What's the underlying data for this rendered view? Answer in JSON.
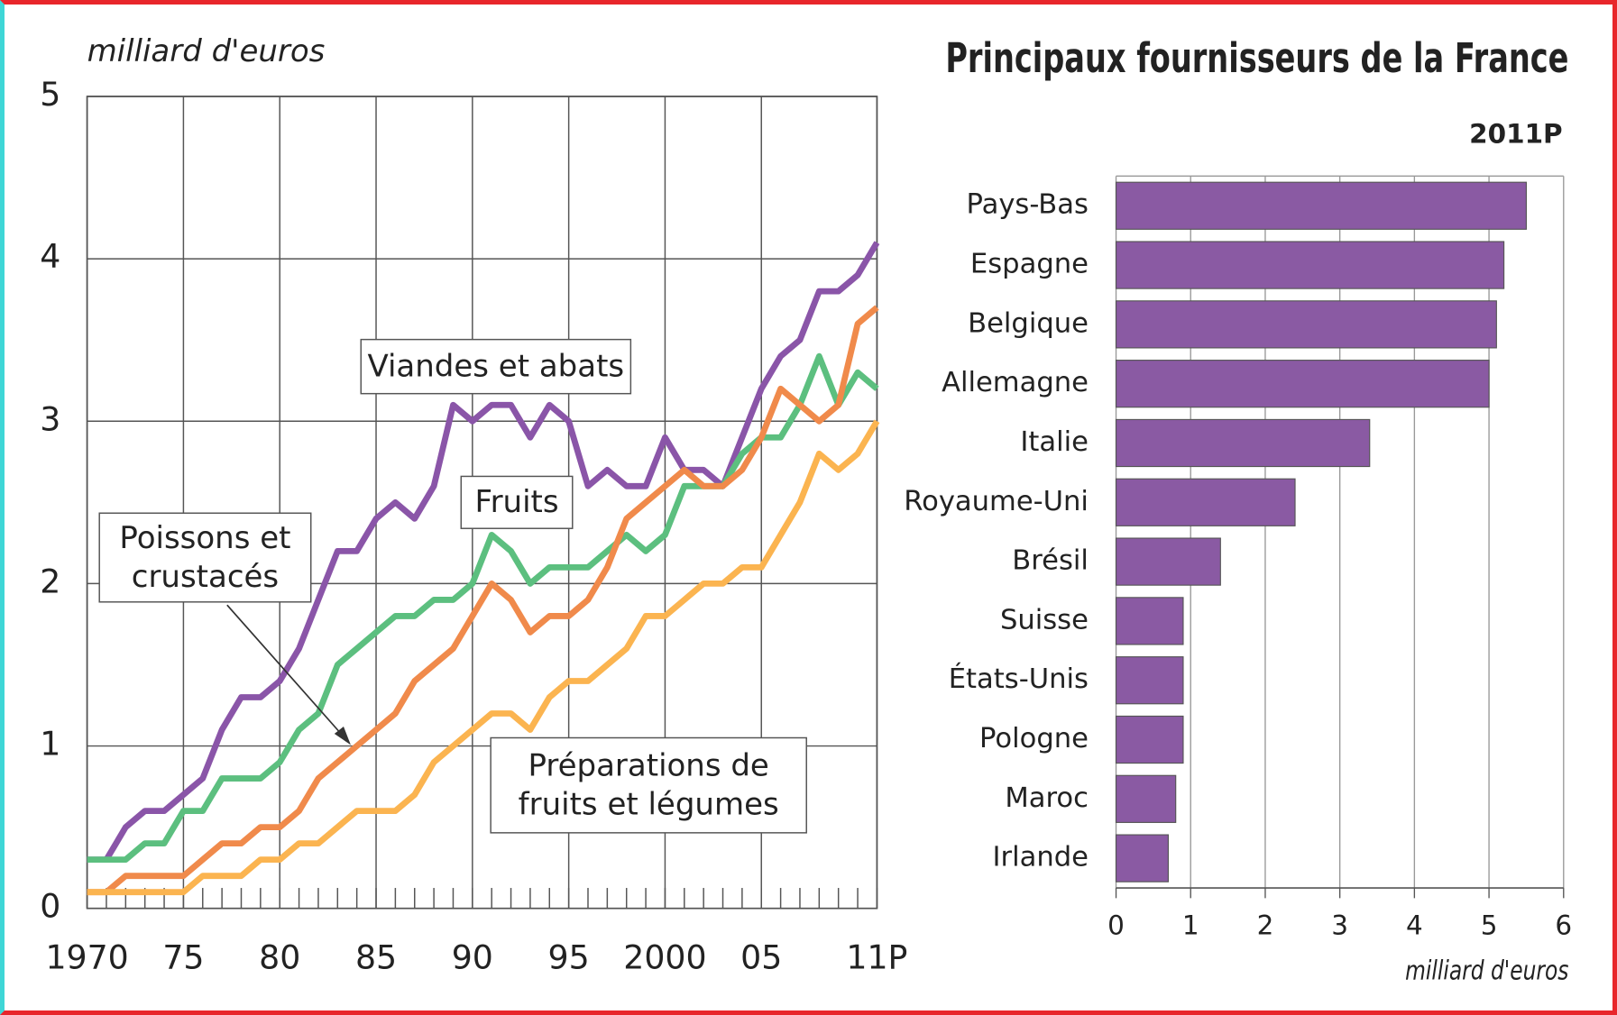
{
  "chart_data": [
    {
      "type": "line",
      "ylabel": "milliard d'euros",
      "x": [
        1970,
        1971,
        1972,
        1973,
        1974,
        1975,
        1976,
        1977,
        1978,
        1979,
        1980,
        1981,
        1982,
        1983,
        1984,
        1985,
        1986,
        1987,
        1988,
        1989,
        1990,
        1991,
        1992,
        1993,
        1994,
        1995,
        1996,
        1997,
        1998,
        1999,
        2000,
        2001,
        2002,
        2003,
        2004,
        2005,
        2006,
        2007,
        2008,
        2009,
        2010,
        2011
      ],
      "xlim": [
        1970,
        2011
      ],
      "xticks": [
        {
          "value": 1970,
          "label": "1970"
        },
        {
          "value": 1975,
          "label": "75"
        },
        {
          "value": 1980,
          "label": "80"
        },
        {
          "value": 1985,
          "label": "85"
        },
        {
          "value": 1990,
          "label": "90"
        },
        {
          "value": 1995,
          "label": "95"
        },
        {
          "value": 2000,
          "label": "2000"
        },
        {
          "value": 2005,
          "label": "05"
        },
        {
          "value": 2011,
          "label": "11P"
        }
      ],
      "ylim": [
        0,
        5
      ],
      "yticks": [
        0,
        1,
        2,
        3,
        4,
        5
      ],
      "grid": true,
      "series": [
        {
          "name": "Viandes et abats",
          "color": "#8a55a8",
          "values": [
            0.3,
            0.3,
            0.5,
            0.6,
            0.6,
            0.7,
            0.8,
            1.1,
            1.3,
            1.3,
            1.4,
            1.6,
            1.9,
            2.2,
            2.2,
            2.4,
            2.5,
            2.4,
            2.6,
            3.1,
            3.0,
            3.1,
            3.1,
            2.9,
            3.1,
            3.0,
            2.6,
            2.7,
            2.6,
            2.6,
            2.9,
            2.7,
            2.7,
            2.6,
            2.9,
            3.2,
            3.4,
            3.5,
            3.8,
            3.8,
            3.9,
            4.1
          ]
        },
        {
          "name": "Fruits",
          "color": "#5cbf7f",
          "values": [
            0.3,
            0.3,
            0.3,
            0.4,
            0.4,
            0.6,
            0.6,
            0.8,
            0.8,
            0.8,
            0.9,
            1.1,
            1.2,
            1.5,
            1.6,
            1.7,
            1.8,
            1.8,
            1.9,
            1.9,
            2.0,
            2.3,
            2.2,
            2.0,
            2.1,
            2.1,
            2.1,
            2.2,
            2.3,
            2.2,
            2.3,
            2.6,
            2.6,
            2.6,
            2.8,
            2.9,
            2.9,
            3.1,
            3.4,
            3.1,
            3.3,
            3.2
          ]
        },
        {
          "name": "Poissons et crustacés",
          "color": "#f08a4b",
          "values": [
            0.1,
            0.1,
            0.2,
            0.2,
            0.2,
            0.2,
            0.3,
            0.4,
            0.4,
            0.5,
            0.5,
            0.6,
            0.8,
            0.9,
            1.0,
            1.1,
            1.2,
            1.4,
            1.5,
            1.6,
            1.8,
            2.0,
            1.9,
            1.7,
            1.8,
            1.8,
            1.9,
            2.1,
            2.4,
            2.5,
            2.6,
            2.7,
            2.6,
            2.6,
            2.7,
            2.9,
            3.2,
            3.1,
            3.0,
            3.1,
            3.6,
            3.7
          ]
        },
        {
          "name": "Préparations de fruits et légumes",
          "color": "#fbb450",
          "values": [
            0.1,
            0.1,
            0.1,
            0.1,
            0.1,
            0.1,
            0.2,
            0.2,
            0.2,
            0.3,
            0.3,
            0.4,
            0.4,
            0.5,
            0.6,
            0.6,
            0.6,
            0.7,
            0.9,
            1.0,
            1.1,
            1.2,
            1.2,
            1.1,
            1.3,
            1.4,
            1.4,
            1.5,
            1.6,
            1.8,
            1.8,
            1.9,
            2.0,
            2.0,
            2.1,
            2.1,
            2.3,
            2.5,
            2.8,
            2.7,
            2.8,
            3.0
          ]
        }
      ]
    },
    {
      "type": "barh",
      "title": "Principaux fournisseurs de la France",
      "subtitle": "2011P",
      "xlabel": "milliard d'euros",
      "categories": [
        "Pays-Bas",
        "Espagne",
        "Belgique",
        "Allemagne",
        "Italie",
        "Royaume-Uni",
        "Brésil",
        "Suisse",
        "États-Unis",
        "Pologne",
        "Maroc",
        "Irlande"
      ],
      "values": [
        5.5,
        5.2,
        5.1,
        5.0,
        3.4,
        2.4,
        1.4,
        0.9,
        0.9,
        0.9,
        0.8,
        0.7
      ],
      "color": "#8a5aa3",
      "xlim": [
        0,
        6
      ],
      "xticks": [
        0,
        1,
        2,
        3,
        4,
        5,
        6
      ],
      "grid": true
    }
  ]
}
